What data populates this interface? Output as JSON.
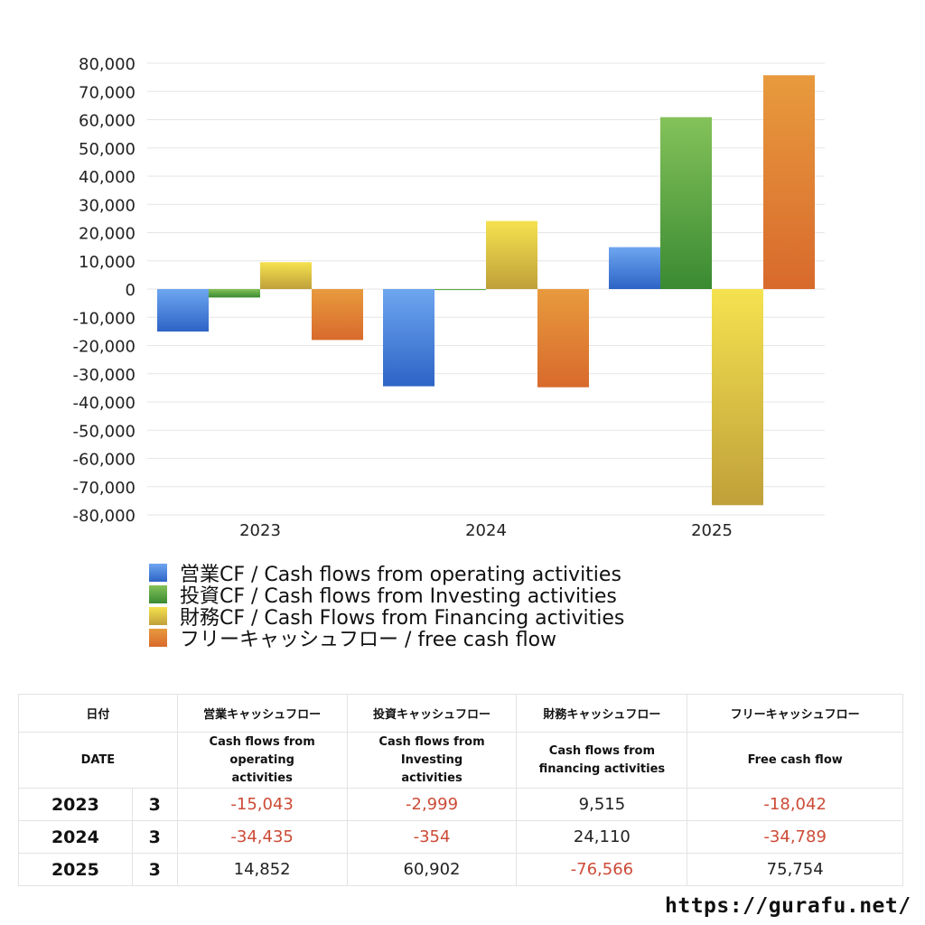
{
  "chart_data": {
    "type": "bar",
    "categories": [
      "2023",
      "2024",
      "2025"
    ],
    "series": [
      {
        "name": "営業CF / Cash flows from operating activities",
        "values": [
          -15043,
          -34435,
          14852
        ],
        "color": "#3f7fdc",
        "gradient": [
          "#6ea6f0",
          "#2d64c6"
        ]
      },
      {
        "name": "投資CF / Cash flows from Investing activities",
        "values": [
          -2999,
          -354,
          60902
        ],
        "color": "#4b9a3c",
        "gradient": [
          "#84c25a",
          "#3a8a32"
        ]
      },
      {
        "name": "財務CF / Cash Flows from Financing activities",
        "values": [
          9515,
          24110,
          -76566
        ],
        "color": "#e2cc3e",
        "gradient": [
          "#f5e24f",
          "#bfa03a"
        ]
      },
      {
        "name": "フリーキャッシュフロー / free cash flow",
        "values": [
          -18042,
          -34789,
          75754
        ],
        "color": "#e07a2e",
        "gradient": [
          "#e89a3e",
          "#d86a2c"
        ]
      }
    ],
    "ylim": [
      -80000,
      80000
    ],
    "ytick_step": 10000,
    "grid": true,
    "legend_position": "bottom-left"
  },
  "table": {
    "header_jp": [
      "日付",
      "営業キャッシュフロー",
      "投資キャッシュフロー",
      "財務キャッシュフロー",
      "フリーキャッシュフロー"
    ],
    "header_en": [
      "DATE",
      "Cash flows from operating activities",
      "Cash flows from Investing activities",
      "Cash flows from financing activities",
      "Free cash flow"
    ],
    "rows": [
      {
        "year": "2023",
        "month": "3",
        "values": [
          "-15,043",
          "-2,999",
          "9,515",
          "-18,042"
        ]
      },
      {
        "year": "2024",
        "month": "3",
        "values": [
          "-34,435",
          "-354",
          "24,110",
          "-34,789"
        ]
      },
      {
        "year": "2025",
        "month": "3",
        "values": [
          "14,852",
          "60,902",
          "-76,566",
          "75,754"
        ]
      }
    ]
  },
  "footer": {
    "url": "https://gurafu.net/"
  },
  "colors": {
    "negative_text": "#cc4b37",
    "grid": "#e6e6e6"
  }
}
